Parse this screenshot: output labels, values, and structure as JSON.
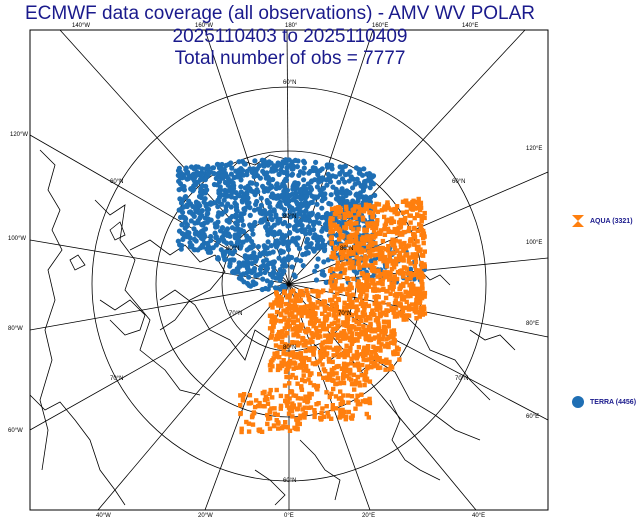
{
  "title": {
    "line1": "ECMWF data coverage (all observations) - AMV WV POLAR",
    "line2": "2025110403 to 2025110409",
    "line3": "Total number of obs = 7777"
  },
  "legend": [
    {
      "label": "AQUA (3321)",
      "color": "#ff7f0e",
      "symbol": "hourglass-icon"
    },
    {
      "label": "TERRA (4456)",
      "color": "#1f6fb4",
      "symbol": "circle-icon"
    }
  ],
  "lon_labels": [
    "140°W",
    "160°W",
    "180°",
    "160°E",
    "140°E",
    "120°W",
    "120°E",
    "100°W",
    "100°E",
    "80°W",
    "80°E",
    "60°W",
    "60°E",
    "40°W",
    "20°W",
    "0°E",
    "20°E",
    "40°E"
  ],
  "lat_labels": [
    "60°N",
    "70°N",
    "80°N",
    "60°N",
    "70°N",
    "80°N",
    "70°N",
    "60°N",
    "70°N",
    "60°N",
    "70°N",
    "70°N",
    "60°N",
    "80°N",
    "60°N"
  ]
}
